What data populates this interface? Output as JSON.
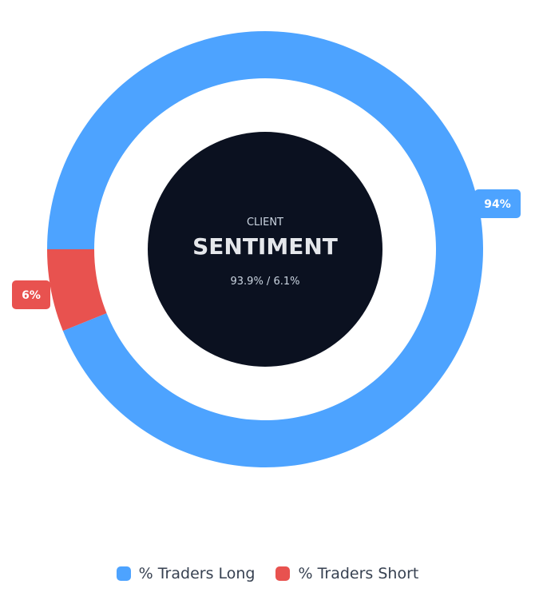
{
  "center": {
    "top_label": "CLIENT",
    "title": "SENTIMENT",
    "ratio_text": "93.9% / 6.1%"
  },
  "chart_data": {
    "type": "pie",
    "series": [
      {
        "name": "% Traders Long",
        "value": 93.9,
        "label": "94%",
        "color": "#4da3ff"
      },
      {
        "name": "% Traders Short",
        "value": 6.1,
        "label": "6%",
        "color": "#e8524f"
      }
    ],
    "legend_position": "bottom-center"
  },
  "legend": {
    "items": [
      {
        "label": "% Traders Long",
        "color": "#4da3ff"
      },
      {
        "label": "% Traders Short",
        "color": "#e8524f"
      }
    ]
  }
}
